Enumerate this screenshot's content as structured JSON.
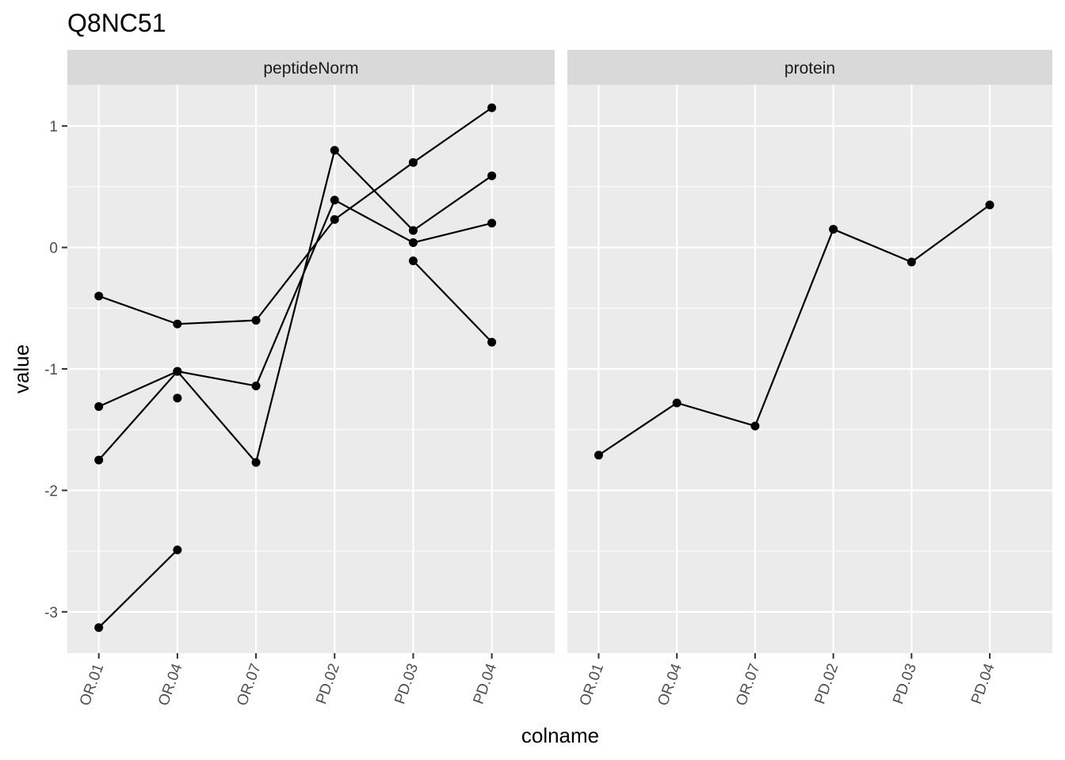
{
  "chart_data": {
    "type": "line",
    "title": "Q8NC51",
    "xlabel": "colname",
    "ylabel": "value",
    "categories": [
      "OR.01",
      "OR.04",
      "OR.07",
      "PD.02",
      "PD.03",
      "PD.04"
    ],
    "ylim": [
      -3.34,
      1.34
    ],
    "y_ticks": [
      -3,
      -2,
      -1,
      0,
      1
    ],
    "y_tick_labels": [
      "-3",
      "-2",
      "-1",
      "0",
      "1"
    ],
    "grid": true,
    "facets": [
      {
        "label": "peptideNorm",
        "series": [
          {
            "values": [
              -0.4,
              -0.63,
              -0.6,
              0.23,
              0.7,
              1.15
            ]
          },
          {
            "values": [
              -1.31,
              -1.02,
              -1.14,
              0.39,
              0.04,
              0.2
            ]
          },
          {
            "values": [
              -1.75,
              -1.02,
              -1.77,
              0.8,
              0.14,
              0.59
            ]
          },
          {
            "values": [
              -3.13,
              -2.49,
              null,
              null,
              -0.11,
              -0.78
            ]
          },
          {
            "values": [
              null,
              -1.24,
              null,
              null,
              null,
              null
            ]
          }
        ]
      },
      {
        "label": "protein",
        "series": [
          {
            "values": [
              -1.71,
              -1.28,
              -1.47,
              0.15,
              -0.12,
              0.35
            ]
          }
        ]
      }
    ]
  }
}
